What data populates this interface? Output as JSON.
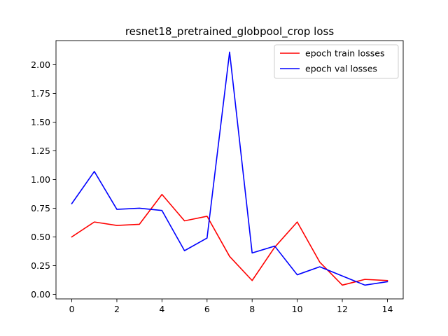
{
  "chart_data": {
    "type": "line",
    "title": "resnet18_pretrained_globpool_crop loss",
    "xlabel": "",
    "ylabel": "",
    "x": [
      0,
      1,
      2,
      3,
      4,
      5,
      6,
      7,
      8,
      9,
      10,
      11,
      12,
      13,
      14
    ],
    "xlim": [
      -0.7,
      14.7
    ],
    "ylim": [
      -0.04,
      2.21
    ],
    "xticks": [
      0,
      2,
      4,
      6,
      8,
      10,
      12,
      14
    ],
    "xtick_labels": [
      "0",
      "2",
      "4",
      "6",
      "8",
      "10",
      "12",
      "14"
    ],
    "yticks": [
      0.0,
      0.25,
      0.5,
      0.75,
      1.0,
      1.25,
      1.5,
      1.75,
      2.0
    ],
    "ytick_labels": [
      "0.00",
      "0.25",
      "0.50",
      "0.75",
      "1.00",
      "1.25",
      "1.50",
      "1.75",
      "2.00"
    ],
    "grid": false,
    "legend_position": "top-right",
    "series": [
      {
        "name": "epoch train losses",
        "color": "#ff0000",
        "values": [
          0.5,
          0.63,
          0.6,
          0.61,
          0.87,
          0.64,
          0.68,
          0.33,
          0.12,
          0.41,
          0.63,
          0.28,
          0.08,
          0.13,
          0.12
        ]
      },
      {
        "name": "epoch val losses",
        "color": "#0000ff",
        "values": [
          0.79,
          1.07,
          0.74,
          0.75,
          0.73,
          0.38,
          0.49,
          2.11,
          0.36,
          0.42,
          0.17,
          0.24,
          0.16,
          0.08,
          0.11
        ]
      }
    ]
  }
}
